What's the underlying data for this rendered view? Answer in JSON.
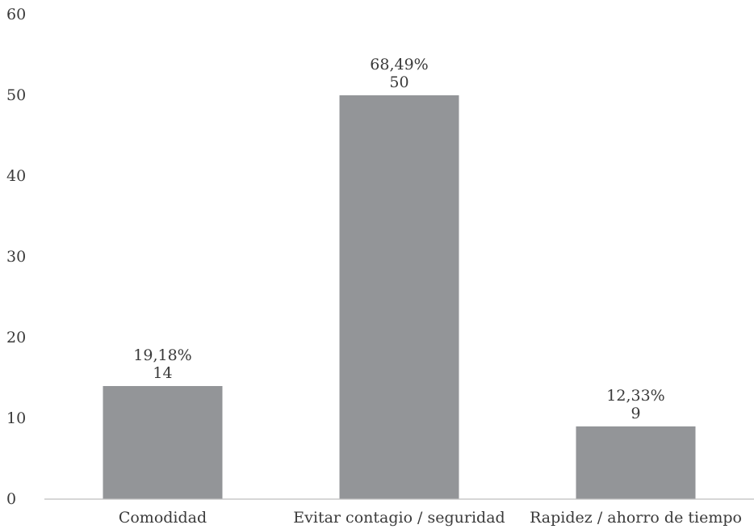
{
  "chart_data": {
    "type": "bar",
    "categories": [
      "Comodidad",
      "Evitar contagio / seguridad",
      "Rapidez / ahorro de tiempo"
    ],
    "values": [
      14,
      50,
      9
    ],
    "percent_labels": [
      "19,18%",
      "68,49%",
      "12,33%"
    ],
    "value_labels": [
      "14",
      "50",
      "9"
    ],
    "y_ticks": [
      "0",
      "10",
      "20",
      "30",
      "40",
      "50",
      "60"
    ],
    "ylim": [
      0,
      60
    ],
    "title": "",
    "xlabel": "",
    "ylabel": "",
    "grid": false,
    "legend": "none",
    "bar_color": "#939598",
    "axis_color": "#bfbfbf",
    "text_color": "#3a3a3a"
  }
}
